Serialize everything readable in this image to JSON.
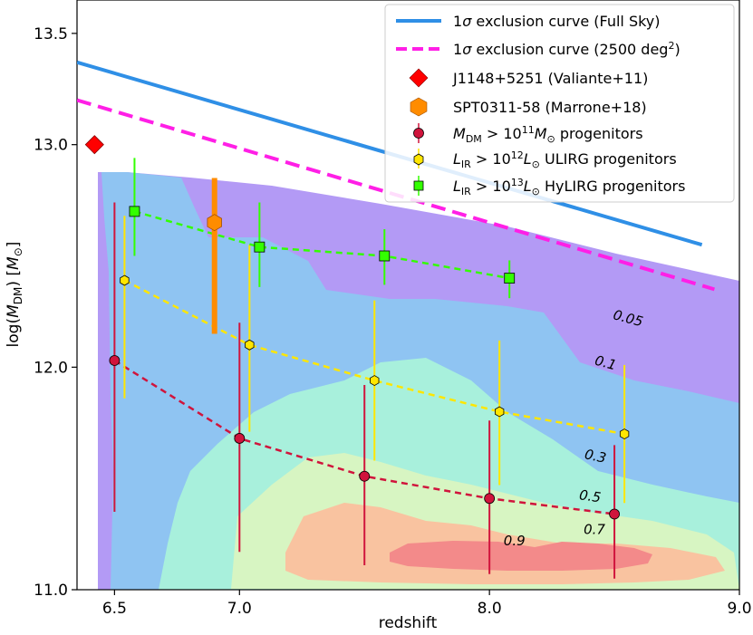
{
  "chart_data": {
    "type": "scatter",
    "xlabel": "redshift",
    "ylabel": "log(M_DM) [M_⊙]",
    "xlim": [
      6.35,
      9.0
    ],
    "ylim": [
      11.0,
      13.65
    ],
    "x_ticks": [
      "6.5",
      "7.0",
      "8.0",
      "9.0"
    ],
    "x_tick_values": [
      6.5,
      7.0,
      8.0,
      9.0
    ],
    "y_ticks": [
      "11.0",
      "12.0",
      "13.0",
      "13.5"
    ],
    "y_tick_values": [
      11.0,
      12.0,
      13.0,
      13.5
    ],
    "grid": false,
    "legend_placement": "top-right",
    "contour_levels": [
      "0.05",
      "0.1",
      "0.3",
      "0.5",
      "0.7",
      "0.9"
    ],
    "contour_colors": [
      "#b39af5",
      "#8fc4f2",
      "#a8f0dc",
      "#d7f5c2",
      "#f9c3a0",
      "#f38a8a"
    ],
    "legend": [
      {
        "key": "full_sky",
        "text": "1σ exclusion curve (Full Sky)",
        "color": "#2f8fe6"
      },
      {
        "key": "partial",
        "text": "1σ exclusion curve (2500 deg²)",
        "color": "#ff1fe6"
      },
      {
        "key": "j1148",
        "text": "J1148+5251 (Valiante+11)",
        "color": "#ff0000"
      },
      {
        "key": "spt",
        "text": "SPT0311-58 (Marrone+18)",
        "color": "#ff8c00"
      },
      {
        "key": "mdm",
        "text": "M_DM > 10^11 M_⊙ progenitors",
        "color": "#d0143c"
      },
      {
        "key": "lir12",
        "text": "L_IR > 10^12 L_⊙ ULIRG progenitors",
        "color": "#ffe600"
      },
      {
        "key": "lir13",
        "text": "L_IR > 10^13 L_⊙ HyLIRG progenitors",
        "color": "#33ff00"
      }
    ],
    "series": [
      {
        "key": "full_sky",
        "type": "line",
        "color": "#2f8fe6",
        "x": [
          6.35,
          8.85
        ],
        "y": [
          13.37,
          12.55
        ]
      },
      {
        "key": "partial",
        "type": "line",
        "color": "#ff1fe6",
        "x": [
          6.35,
          8.9
        ],
        "y": [
          13.2,
          12.35
        ]
      },
      {
        "key": "mdm",
        "type": "errorbar",
        "color": "#d0143c",
        "x": [
          6.5,
          7.0,
          7.5,
          8.0,
          8.5
        ],
        "y": [
          12.03,
          11.68,
          11.51,
          11.41,
          11.34
        ],
        "yerr_low": [
          11.35,
          11.17,
          11.11,
          11.07,
          11.05
        ],
        "yerr_high": [
          12.74,
          12.2,
          11.92,
          11.76,
          11.65
        ]
      },
      {
        "key": "lir12",
        "type": "errorbar",
        "color": "#ffe600",
        "x": [
          6.54,
          7.04,
          7.54,
          8.04,
          8.54
        ],
        "y": [
          12.39,
          12.1,
          11.94,
          11.8,
          11.7
        ],
        "yerr_low": [
          11.86,
          11.71,
          11.58,
          11.47,
          11.39
        ],
        "yerr_high": [
          12.68,
          12.55,
          12.3,
          12.12,
          12.01
        ]
      },
      {
        "key": "lir13",
        "type": "errorbar",
        "color": "#33ff00",
        "x": [
          6.58,
          7.08,
          7.58,
          8.08
        ],
        "y": [
          12.7,
          12.54,
          12.5,
          12.4
        ],
        "yerr_low": [
          12.5,
          12.36,
          12.37,
          12.31
        ],
        "yerr_high": [
          12.94,
          12.74,
          12.62,
          12.48
        ]
      },
      {
        "key": "spt",
        "type": "errorbar",
        "color": "#ff8c00",
        "x": [
          6.9
        ],
        "y": [
          12.65
        ],
        "yerr_low": [
          12.15
        ],
        "yerr_high": [
          12.85
        ]
      },
      {
        "key": "j1148",
        "type": "point",
        "color": "#ff0000",
        "x": [
          6.42
        ],
        "y": [
          13.0
        ]
      }
    ],
    "contour_label_positions": [
      {
        "text": "0.05",
        "x": 8.55,
        "y": 12.2,
        "rot": 15
      },
      {
        "text": "0.1",
        "x": 8.46,
        "y": 12.0,
        "rot": 15
      },
      {
        "text": "0.3",
        "x": 8.42,
        "y": 11.58,
        "rot": 12
      },
      {
        "text": "0.5",
        "x": 8.4,
        "y": 11.4,
        "rot": 8
      },
      {
        "text": "0.7",
        "x": 8.42,
        "y": 11.25,
        "rot": 0
      },
      {
        "text": "0.9",
        "x": 8.1,
        "y": 11.2,
        "rot": 0
      }
    ]
  }
}
